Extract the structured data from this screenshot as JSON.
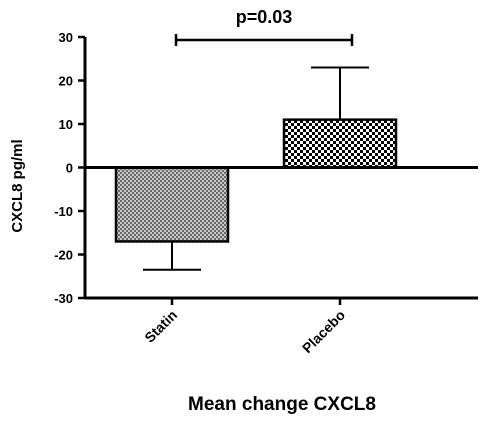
{
  "chart_data": {
    "type": "bar",
    "categories": [
      "Statin",
      "Placebo"
    ],
    "values": [
      -17,
      11
    ],
    "error_upper": [
      null,
      23
    ],
    "error_lower": [
      -23.5,
      null
    ],
    "ylabel": "CXCL8 pg/ml",
    "xlabel": "Mean change CXCL8",
    "ylim": [
      -30,
      30
    ],
    "yticks": [
      -30,
      -20,
      -10,
      0,
      10,
      20,
      30
    ],
    "ytick_labels": [
      "-30",
      "-20",
      "-10",
      "0",
      "10",
      "20",
      "30"
    ],
    "annotation": "p=0.03",
    "grid": false,
    "bar_patterns": [
      "fine-grey-checker",
      "black-white-checker"
    ]
  }
}
